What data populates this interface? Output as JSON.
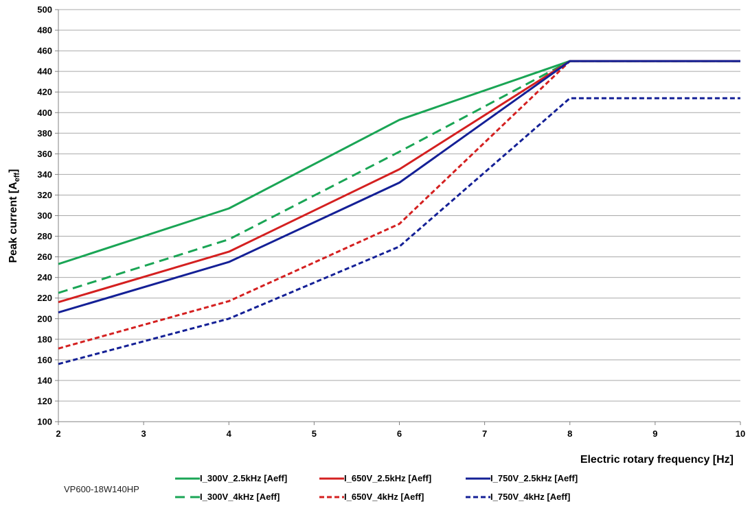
{
  "chart_data": {
    "type": "line",
    "title": "",
    "xlabel": "Electric rotary frequency [Hz]",
    "ylabel_main": "Peak current [A",
    "ylabel_sub": "eff",
    "ylabel_close": "]",
    "xlim": [
      2,
      10
    ],
    "ylim": [
      100,
      500
    ],
    "x_ticks": [
      "2",
      "3",
      "4",
      "5",
      "6",
      "7",
      "8",
      "9",
      "10"
    ],
    "y_ticks": [
      "100",
      "120",
      "140",
      "160",
      "180",
      "200",
      "220",
      "240",
      "260",
      "280",
      "300",
      "320",
      "340",
      "360",
      "380",
      "400",
      "420",
      "440",
      "460",
      "480",
      "500"
    ],
    "grid": true,
    "legend_position": "bottom",
    "x": [
      2,
      4,
      6,
      8,
      10
    ],
    "series": [
      {
        "name": "I_300V_2.5kHz [Aeff]",
        "color": "#1aa555",
        "dash": "solid",
        "values": [
          253,
          307,
          393,
          450,
          450
        ]
      },
      {
        "name": "I_650V_2.5kHz [Aeff]",
        "color": "#d42020",
        "dash": "solid",
        "values": [
          216,
          265,
          345,
          450,
          450
        ]
      },
      {
        "name": "I_750V_2.5kHz [Aeff]",
        "color": "#142096",
        "dash": "solid",
        "values": [
          206,
          255,
          332,
          450,
          450
        ]
      },
      {
        "name": "I_300V_4kHz [Aeff]",
        "color": "#1aa555",
        "dash": "long",
        "values": [
          225,
          277,
          362,
          450,
          450
        ]
      },
      {
        "name": "I_650V_4kHz [Aeff]",
        "color": "#d42020",
        "dash": "short",
        "values": [
          171,
          217,
          292,
          450,
          450
        ]
      },
      {
        "name": "I_750V_4kHz [Aeff]",
        "color": "#142096",
        "dash": "short",
        "values": [
          156,
          200,
          270,
          414,
          414
        ]
      }
    ]
  },
  "caption": "VP600-18W140HP"
}
